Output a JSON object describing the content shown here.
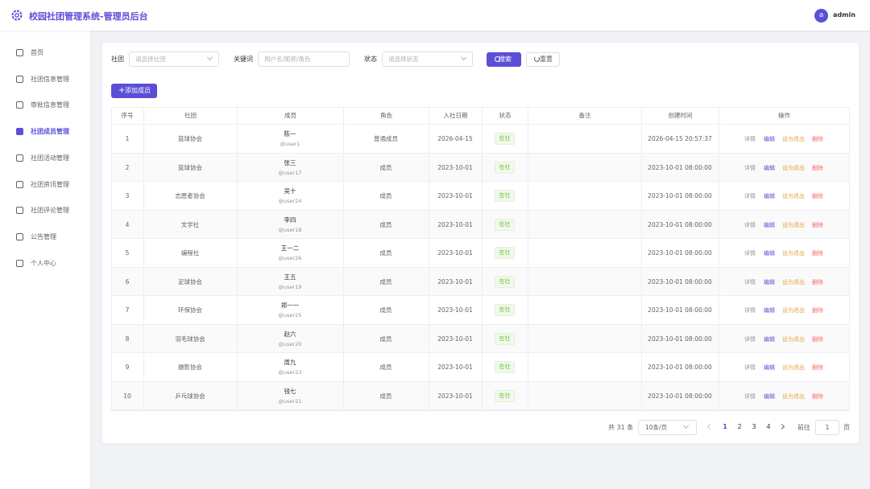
{
  "header": {
    "title": "校园社团管理系统-管理员后台",
    "avatar": "a",
    "user": "admin"
  },
  "menu": [
    "首页",
    "社团信息管理",
    "审批信息管理",
    "社团成员管理",
    "社团活动管理",
    "社团资讯管理",
    "社团评论管理",
    "公告管理",
    "个人中心"
  ],
  "filters": {
    "club_label": "社团",
    "club_placeholder": "请选择社团",
    "keyword_label": "关键词",
    "keyword_placeholder": "用户名/昵称/角色",
    "status_label": "状态",
    "status_placeholder": "请选择状态",
    "search": "搜索",
    "reset": "重置",
    "add": "添加成员"
  },
  "table": {
    "columns": [
      "序号",
      "社团",
      "成员",
      "角色",
      "入社日期",
      "状态",
      "备注",
      "创建时间",
      "操作"
    ],
    "actions": [
      "详情",
      "编辑",
      "设为退出",
      "删除"
    ],
    "rows": [
      [
        1,
        "篮球协会",
        "陈一",
        "@user1",
        "普通成员",
        "2026-04-15",
        "在社",
        "2026-04-15 20:57:37"
      ],
      [
        2,
        "篮球协会",
        "张三",
        "@user17",
        "成员",
        "2023-10-01",
        "在社",
        "2023-10-01 08:00:00"
      ],
      [
        3,
        "志愿者协会",
        "吴十",
        "@user24",
        "成员",
        "2023-10-01",
        "在社",
        "2023-10-01 08:00:00"
      ],
      [
        4,
        "文学社",
        "李四",
        "@user18",
        "成员",
        "2023-10-01",
        "在社",
        "2023-10-01 08:00:00"
      ],
      [
        5,
        "编程社",
        "王一二",
        "@user26",
        "成员",
        "2023-10-01",
        "在社",
        "2023-10-01 08:00:00"
      ],
      [
        6,
        "足球协会",
        "王五",
        "@user19",
        "成员",
        "2023-10-01",
        "在社",
        "2023-10-01 08:00:00"
      ],
      [
        7,
        "环保协会",
        "郑一一",
        "@user25",
        "成员",
        "2023-10-01",
        "在社",
        "2023-10-01 08:00:00"
      ],
      [
        8,
        "羽毛球协会",
        "赵六",
        "@user20",
        "成员",
        "2023-10-01",
        "在社",
        "2023-10-01 08:00:00"
      ],
      [
        9,
        "摄影协会",
        "周九",
        "@user23",
        "成员",
        "2023-10-01",
        "在社",
        "2023-10-01 08:00:00"
      ],
      [
        10,
        "乒乓球协会",
        "钱七",
        "@user21",
        "成员",
        "2023-10-01",
        "在社",
        "2023-10-01 08:00:00"
      ]
    ]
  },
  "pagination": {
    "total": "共 31 条",
    "size": "10条/页",
    "pages": [
      1,
      2,
      3,
      4
    ],
    "goto": "前往",
    "current": 1,
    "unit": "页"
  }
}
